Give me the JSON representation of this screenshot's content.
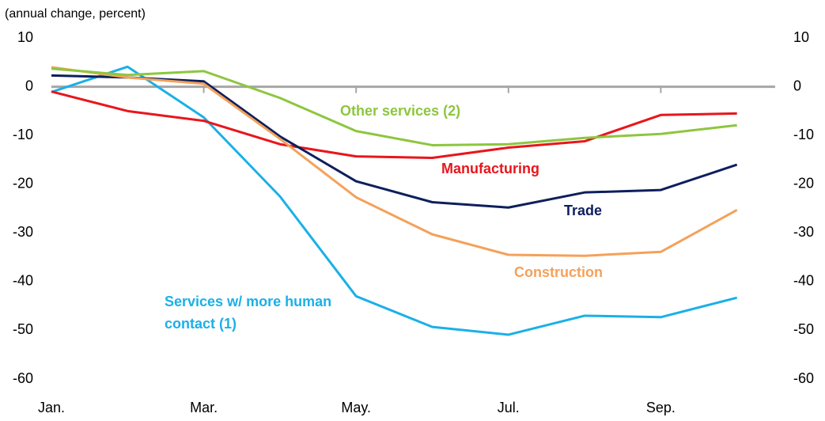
{
  "chart_data": {
    "type": "line",
    "y_label": "(annual change, percent)",
    "categories": [
      "Jan.",
      null,
      "Mar.",
      null,
      "May.",
      null,
      "Jul.",
      null,
      "Sep.",
      null
    ],
    "ylim": [
      -60,
      10
    ],
    "yticks": [
      10,
      0,
      -10,
      -20,
      -30,
      -40,
      -50,
      -60
    ],
    "y2lim": [
      -60,
      10
    ],
    "y2ticks": [
      10,
      0,
      -10,
      -20,
      -30,
      -40,
      -50,
      -60
    ],
    "grid": false,
    "series": [
      {
        "name": "Services w/ more human contact (1)",
        "color": "#1ab0e8",
        "values": [
          -1.1,
          4.1,
          -6.3,
          -22.5,
          -43,
          -49.3,
          -50.9,
          -47,
          -47.3,
          -43.3
        ]
      },
      {
        "name": "Manufacturing",
        "color": "#e8161b",
        "values": [
          -1,
          -5,
          -7,
          -11.8,
          -14.3,
          -14.6,
          -12.5,
          -11.2,
          -5.8,
          -5.5
        ]
      },
      {
        "name": "Trade",
        "color": "#0d1f5c",
        "values": [
          2.3,
          1.9,
          1.1,
          -10.2,
          -19.4,
          -23.7,
          -24.8,
          -21.7,
          -21.2,
          -16
        ]
      },
      {
        "name": "Construction",
        "color": "#f4a15a",
        "values": [
          4,
          1.9,
          0.6,
          -10.7,
          -22.7,
          -30.3,
          -34.5,
          -34.7,
          -33.9,
          -25.3
        ]
      },
      {
        "name": "Other services (2)",
        "color": "#8dc63f",
        "values": [
          3.7,
          2.4,
          3.2,
          -2.3,
          -9.1,
          -12,
          -11.8,
          -10.5,
          -9.7,
          -7.9
        ]
      }
    ]
  }
}
